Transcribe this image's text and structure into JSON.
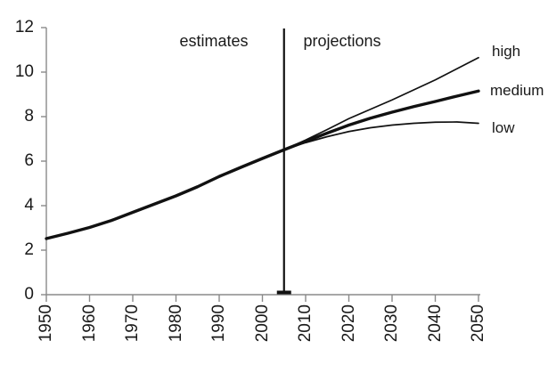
{
  "chart_data": {
    "type": "line",
    "title": "",
    "xlabel": "",
    "ylabel": "",
    "xlim": [
      1950,
      2050
    ],
    "ylim": [
      0,
      12
    ],
    "xticks": [
      1950,
      1960,
      1970,
      1980,
      1990,
      2000,
      2010,
      2020,
      2030,
      2040,
      2050
    ],
    "yticks": [
      0,
      2,
      4,
      6,
      8,
      10,
      12
    ],
    "grid": false,
    "legend_position": "right-inline",
    "divider": {
      "x": 2005,
      "left_label": "estimates",
      "right_label": "projections"
    },
    "series": [
      {
        "name": "estimates",
        "label": "",
        "style": "thick",
        "x": [
          1950,
          1955,
          1960,
          1965,
          1970,
          1975,
          1980,
          1985,
          1990,
          1995,
          2000,
          2005
        ],
        "y": [
          2.52,
          2.76,
          3.02,
          3.33,
          3.7,
          4.07,
          4.44,
          4.85,
          5.31,
          5.72,
          6.12,
          6.51
        ]
      },
      {
        "name": "high-projection",
        "label": "high",
        "style": "thin",
        "x": [
          2005,
          2010,
          2015,
          2020,
          2025,
          2030,
          2035,
          2040,
          2045,
          2050
        ],
        "y": [
          6.51,
          6.95,
          7.42,
          7.91,
          8.33,
          8.75,
          9.2,
          9.65,
          10.15,
          10.65
        ]
      },
      {
        "name": "medium-projection",
        "label": "medium",
        "style": "thick",
        "x": [
          2005,
          2010,
          2015,
          2020,
          2025,
          2030,
          2035,
          2040,
          2045,
          2050
        ],
        "y": [
          6.51,
          6.89,
          7.26,
          7.62,
          7.93,
          8.2,
          8.45,
          8.68,
          8.92,
          9.15
        ]
      },
      {
        "name": "low-projection",
        "label": "low",
        "style": "thin",
        "x": [
          2005,
          2010,
          2015,
          2020,
          2025,
          2030,
          2035,
          2040,
          2045,
          2050
        ],
        "y": [
          6.51,
          6.83,
          7.1,
          7.33,
          7.5,
          7.62,
          7.7,
          7.75,
          7.76,
          7.7
        ]
      }
    ],
    "colors": {
      "line": "#111111",
      "axis": "#8a8a8a",
      "text": "#1a1a1a",
      "background": "#ffffff"
    }
  }
}
